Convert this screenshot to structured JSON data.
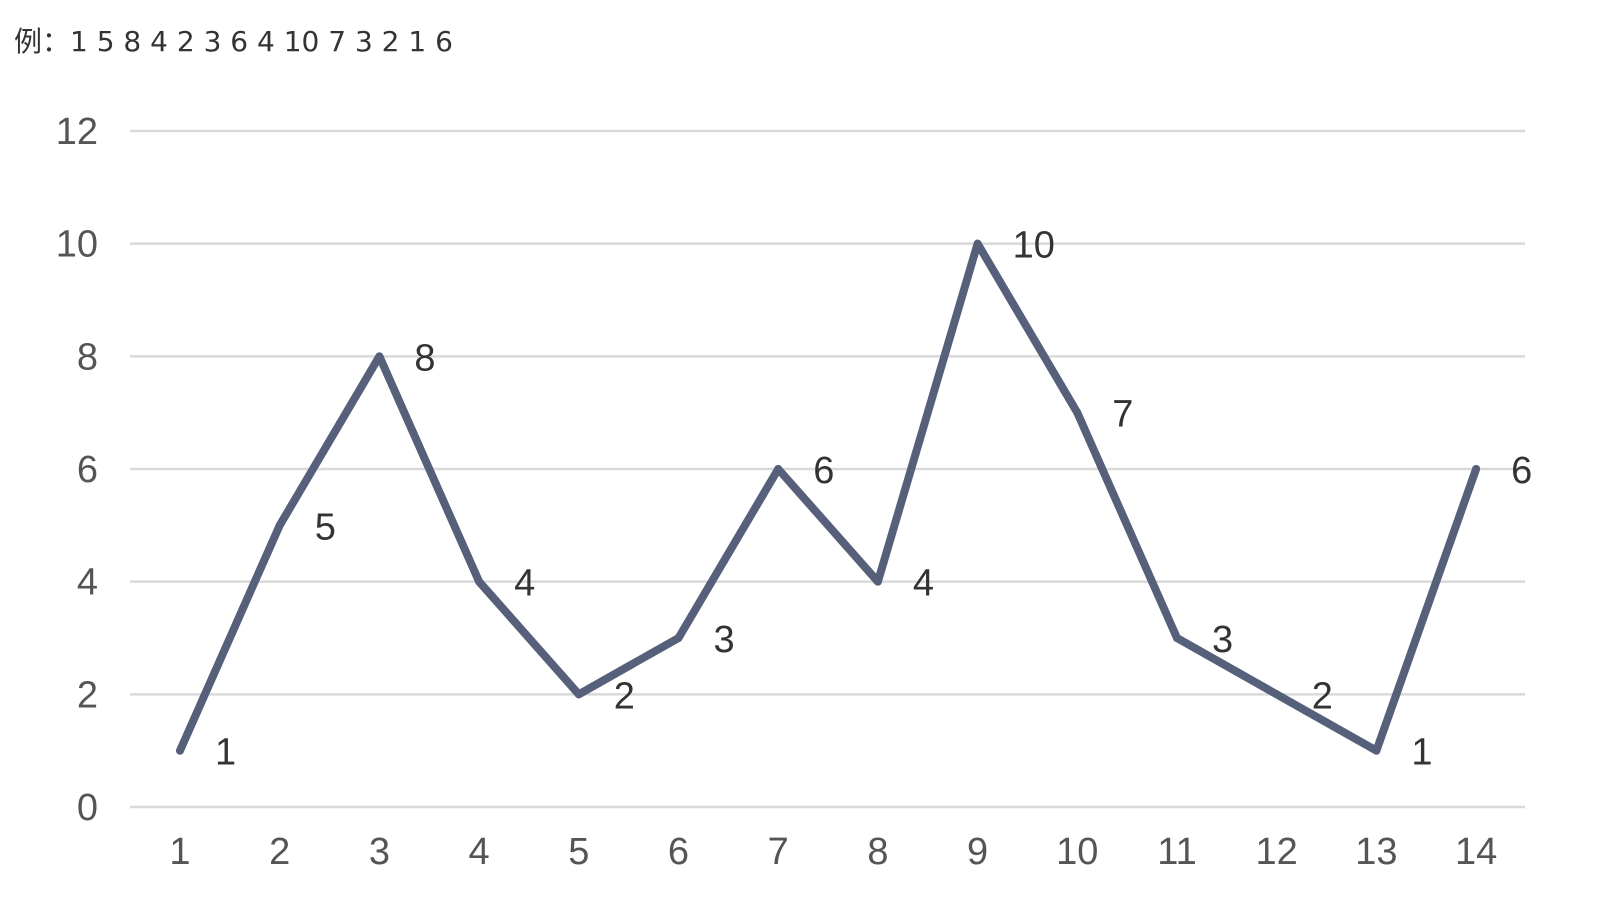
{
  "caption": "例：1 5 8 4 2 3 6 4 10 7 3 2 1 6",
  "chart_data": {
    "type": "line",
    "title": "",
    "xlabel": "",
    "ylabel": "",
    "categories": [
      "1",
      "2",
      "3",
      "4",
      "5",
      "6",
      "7",
      "8",
      "9",
      "10",
      "11",
      "12",
      "13",
      "14"
    ],
    "series": [
      {
        "values": [
          1,
          5,
          8,
          4,
          2,
          3,
          6,
          4,
          10,
          7,
          3,
          2,
          1,
          6
        ]
      }
    ],
    "ylim": [
      0,
      12
    ],
    "yticks": [
      0,
      2,
      4,
      6,
      8,
      10,
      12
    ],
    "grid": true,
    "data_labels": true,
    "line_color": "#56607a",
    "grid_color": "#d9d9d9"
  }
}
